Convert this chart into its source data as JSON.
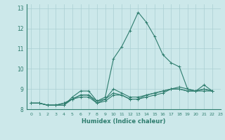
{
  "title": "",
  "xlabel": "Humidex (Indice chaleur)",
  "xlim": [
    -0.5,
    23
  ],
  "ylim": [
    8,
    13.2
  ],
  "yticks": [
    8,
    9,
    10,
    11,
    12,
    13
  ],
  "xticks": [
    0,
    1,
    2,
    3,
    4,
    5,
    6,
    7,
    8,
    9,
    10,
    11,
    12,
    13,
    14,
    15,
    16,
    17,
    18,
    19,
    20,
    21,
    22,
    23
  ],
  "background_color": "#cce8ea",
  "line_color": "#2e7d6e",
  "grid_color": "#aacfd2",
  "series": [
    [
      8.3,
      8.3,
      8.2,
      8.2,
      8.2,
      8.6,
      8.9,
      8.9,
      8.4,
      8.6,
      10.5,
      11.1,
      11.9,
      12.8,
      12.3,
      11.6,
      10.7,
      10.3,
      10.1,
      9.0,
      8.9,
      9.2,
      8.9
    ],
    [
      8.3,
      8.3,
      8.2,
      8.2,
      8.2,
      8.5,
      8.7,
      8.7,
      8.4,
      8.5,
      9.0,
      8.8,
      8.6,
      8.6,
      8.7,
      8.8,
      8.9,
      9.0,
      9.1,
      9.0,
      8.9,
      9.0,
      8.9
    ],
    [
      8.3,
      8.3,
      8.2,
      8.2,
      8.3,
      8.5,
      8.7,
      8.7,
      8.3,
      8.5,
      8.8,
      8.7,
      8.5,
      8.5,
      8.7,
      8.8,
      8.9,
      9.0,
      9.0,
      8.9,
      8.9,
      9.0,
      8.9
    ],
    [
      8.3,
      8.3,
      8.2,
      8.2,
      8.3,
      8.5,
      8.6,
      8.6,
      8.3,
      8.4,
      8.7,
      8.7,
      8.5,
      8.5,
      8.6,
      8.7,
      8.8,
      9.0,
      9.0,
      8.9,
      8.9,
      8.9,
      8.9
    ]
  ],
  "figsize": [
    3.2,
    2.0
  ],
  "dpi": 100
}
